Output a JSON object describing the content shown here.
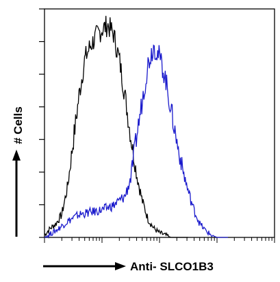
{
  "chart_data": {
    "type": "line",
    "title": "",
    "xlabel": "Anti- SLCO1B3",
    "ylabel": "# Cells",
    "x_scale": "log",
    "xlim": [
      0,
      4
    ],
    "ylim": [
      0,
      100
    ],
    "x_tick_labels": [],
    "y_tick_labels": [],
    "grid": false,
    "legend": "none",
    "series": [
      {
        "color": "#000000",
        "x": [
          0.0,
          0.1,
          0.2,
          0.3,
          0.4,
          0.5,
          0.6,
          0.7,
          0.8,
          0.9,
          1.0,
          1.1,
          1.2,
          1.3,
          1.4,
          1.5,
          1.6,
          1.7,
          1.8,
          1.9,
          2.0,
          2.1,
          2.2,
          2.3,
          2.4,
          2.5
        ],
        "y": [
          1,
          4,
          6,
          10,
          22,
          42,
          62,
          78,
          84,
          88,
          91,
          93,
          89,
          78,
          62,
          44,
          28,
          16,
          8,
          4,
          2,
          1,
          0,
          0,
          0,
          0
        ]
      },
      {
        "color": "#1a1acc",
        "x": [
          0.0,
          0.2,
          0.4,
          0.6,
          0.8,
          1.0,
          1.2,
          1.4,
          1.5,
          1.6,
          1.7,
          1.8,
          1.9,
          2.0,
          2.1,
          2.2,
          2.3,
          2.4,
          2.5,
          2.6,
          2.7,
          2.8,
          2.9,
          3.0,
          3.2
        ],
        "y": [
          0,
          3,
          7,
          10,
          11,
          12,
          14,
          18,
          26,
          44,
          60,
          76,
          84,
          79,
          70,
          56,
          42,
          30,
          20,
          12,
          6,
          3,
          1,
          0,
          0
        ]
      }
    ]
  }
}
